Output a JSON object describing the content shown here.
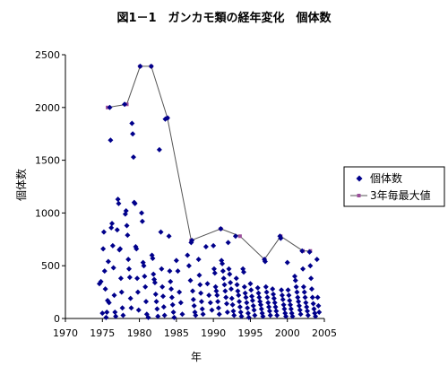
{
  "chart_data": {
    "type": "scatter",
    "title": "図1－1　ガンカモ類の経年変化　個体数",
    "xlabel": "年",
    "ylabel": "個体数",
    "xlim": [
      1970,
      2005
    ],
    "ylim": [
      0,
      2500
    ],
    "xticks": [
      1970,
      1975,
      1980,
      1985,
      1990,
      1995,
      2000,
      2005
    ],
    "yticks": [
      0,
      500,
      1000,
      1500,
      2000,
      2500
    ],
    "grid": false,
    "legend_position": "right",
    "colors": {
      "scatter": "#00008b",
      "line": "#555555",
      "max_marker": "#9b4f9b"
    },
    "series": [
      {
        "name": "個体数",
        "kind": "scatter",
        "points": [
          [
            1974.6,
            330
          ],
          [
            1974.8,
            350
          ],
          [
            1975.0,
            50
          ],
          [
            1975.1,
            660
          ],
          [
            1975.2,
            820
          ],
          [
            1975.3,
            450
          ],
          [
            1975.4,
            280
          ],
          [
            1975.5,
            10
          ],
          [
            1975.6,
            60
          ],
          [
            1975.7,
            170
          ],
          [
            1975.8,
            540
          ],
          [
            1975.9,
            150
          ],
          [
            1976.0,
            2000
          ],
          [
            1976.1,
            1690
          ],
          [
            1976.2,
            860
          ],
          [
            1976.3,
            900
          ],
          [
            1976.4,
            690
          ],
          [
            1976.5,
            480
          ],
          [
            1976.6,
            220
          ],
          [
            1976.7,
            60
          ],
          [
            1976.8,
            20
          ],
          [
            1977.0,
            840
          ],
          [
            1977.1,
            1130
          ],
          [
            1977.2,
            1090
          ],
          [
            1977.3,
            650
          ],
          [
            1977.4,
            660
          ],
          [
            1977.5,
            380
          ],
          [
            1977.6,
            250
          ],
          [
            1977.7,
            100
          ],
          [
            1977.8,
            30
          ],
          [
            1978.0,
            2030
          ],
          [
            1978.1,
            990
          ],
          [
            1978.2,
            1020
          ],
          [
            1978.3,
            880
          ],
          [
            1978.4,
            790
          ],
          [
            1978.5,
            560
          ],
          [
            1978.6,
            470
          ],
          [
            1978.7,
            390
          ],
          [
            1978.8,
            190
          ],
          [
            1978.9,
            100
          ],
          [
            1979.0,
            1850
          ],
          [
            1979.1,
            1750
          ],
          [
            1979.2,
            1530
          ],
          [
            1979.3,
            1100
          ],
          [
            1979.4,
            1090
          ],
          [
            1979.5,
            680
          ],
          [
            1979.6,
            660
          ],
          [
            1979.7,
            380
          ],
          [
            1979.8,
            250
          ],
          [
            1979.9,
            80
          ],
          [
            1980.1,
            2390
          ],
          [
            1980.3,
            1000
          ],
          [
            1980.4,
            920
          ],
          [
            1980.5,
            530
          ],
          [
            1980.6,
            500
          ],
          [
            1980.7,
            400
          ],
          [
            1980.8,
            300
          ],
          [
            1980.9,
            160
          ],
          [
            1981.0,
            40
          ],
          [
            1981.2,
            10
          ],
          [
            1981.6,
            2390
          ],
          [
            1981.7,
            600
          ],
          [
            1981.8,
            570
          ],
          [
            1981.9,
            420
          ],
          [
            1982.0,
            370
          ],
          [
            1982.1,
            340
          ],
          [
            1982.2,
            230
          ],
          [
            1982.3,
            160
          ],
          [
            1982.4,
            90
          ],
          [
            1982.5,
            20
          ],
          [
            1982.7,
            1600
          ],
          [
            1982.9,
            820
          ],
          [
            1983.0,
            470
          ],
          [
            1983.1,
            300
          ],
          [
            1983.2,
            210
          ],
          [
            1983.3,
            110
          ],
          [
            1983.4,
            30
          ],
          [
            1983.5,
            1890
          ],
          [
            1983.8,
            1900
          ],
          [
            1984.0,
            780
          ],
          [
            1984.1,
            450
          ],
          [
            1984.2,
            350
          ],
          [
            1984.3,
            280
          ],
          [
            1984.4,
            200
          ],
          [
            1984.5,
            130
          ],
          [
            1984.6,
            60
          ],
          [
            1984.7,
            10
          ],
          [
            1985.0,
            550
          ],
          [
            1985.2,
            450
          ],
          [
            1985.4,
            250
          ],
          [
            1985.6,
            150
          ],
          [
            1985.8,
            40
          ],
          [
            1986.5,
            600
          ],
          [
            1986.7,
            500
          ],
          [
            1986.9,
            360
          ],
          [
            1987.0,
            720
          ],
          [
            1987.1,
            740
          ],
          [
            1987.2,
            260
          ],
          [
            1987.3,
            180
          ],
          [
            1987.4,
            120
          ],
          [
            1987.5,
            60
          ],
          [
            1987.6,
            30
          ],
          [
            1988.0,
            560
          ],
          [
            1988.1,
            410
          ],
          [
            1988.2,
            320
          ],
          [
            1988.3,
            240
          ],
          [
            1988.4,
            160
          ],
          [
            1988.5,
            90
          ],
          [
            1988.6,
            40
          ],
          [
            1989.0,
            680
          ],
          [
            1989.2,
            330
          ],
          [
            1989.4,
            220
          ],
          [
            1989.6,
            150
          ],
          [
            1989.8,
            80
          ],
          [
            1990.0,
            690
          ],
          [
            1990.1,
            470
          ],
          [
            1990.2,
            430
          ],
          [
            1990.3,
            300
          ],
          [
            1990.4,
            260
          ],
          [
            1990.5,
            220
          ],
          [
            1990.6,
            160
          ],
          [
            1990.7,
            100
          ],
          [
            1990.8,
            40
          ],
          [
            1991.0,
            850
          ],
          [
            1991.1,
            550
          ],
          [
            1991.2,
            520
          ],
          [
            1991.3,
            450
          ],
          [
            1991.4,
            380
          ],
          [
            1991.5,
            320
          ],
          [
            1991.6,
            260
          ],
          [
            1991.7,
            200
          ],
          [
            1991.8,
            140
          ],
          [
            1991.9,
            60
          ],
          [
            1992.0,
            720
          ],
          [
            1992.1,
            470
          ],
          [
            1992.2,
            420
          ],
          [
            1992.3,
            340
          ],
          [
            1992.4,
            280
          ],
          [
            1992.5,
            190
          ],
          [
            1992.6,
            130
          ],
          [
            1992.7,
            70
          ],
          [
            1992.8,
            30
          ],
          [
            1993.0,
            780
          ],
          [
            1993.1,
            380
          ],
          [
            1993.2,
            320
          ],
          [
            1993.3,
            260
          ],
          [
            1993.4,
            220
          ],
          [
            1993.5,
            160
          ],
          [
            1993.6,
            110
          ],
          [
            1993.7,
            60
          ],
          [
            1993.8,
            20
          ],
          [
            1994.0,
            470
          ],
          [
            1994.1,
            440
          ],
          [
            1994.2,
            300
          ],
          [
            1994.3,
            240
          ],
          [
            1994.4,
            200
          ],
          [
            1994.5,
            150
          ],
          [
            1994.6,
            100
          ],
          [
            1994.7,
            50
          ],
          [
            1994.8,
            10
          ],
          [
            1995.0,
            330
          ],
          [
            1995.1,
            270
          ],
          [
            1995.2,
            210
          ],
          [
            1995.3,
            170
          ],
          [
            1995.4,
            120
          ],
          [
            1995.5,
            80
          ],
          [
            1995.6,
            30
          ],
          [
            1996.0,
            290
          ],
          [
            1996.1,
            240
          ],
          [
            1996.2,
            200
          ],
          [
            1996.3,
            160
          ],
          [
            1996.4,
            130
          ],
          [
            1996.5,
            90
          ],
          [
            1996.6,
            50
          ],
          [
            1996.7,
            20
          ],
          [
            1996.9,
            560
          ],
          [
            1997.0,
            540
          ],
          [
            1997.1,
            300
          ],
          [
            1997.2,
            250
          ],
          [
            1997.3,
            200
          ],
          [
            1997.4,
            150
          ],
          [
            1997.5,
            110
          ],
          [
            1997.6,
            70
          ],
          [
            1997.7,
            30
          ],
          [
            1998.0,
            280
          ],
          [
            1998.1,
            230
          ],
          [
            1998.2,
            190
          ],
          [
            1998.3,
            150
          ],
          [
            1998.4,
            110
          ],
          [
            1998.5,
            70
          ],
          [
            1998.6,
            30
          ],
          [
            1999.0,
            780
          ],
          [
            1999.1,
            760
          ],
          [
            1999.2,
            270
          ],
          [
            1999.3,
            220
          ],
          [
            1999.4,
            180
          ],
          [
            1999.5,
            130
          ],
          [
            1999.6,
            90
          ],
          [
            1999.7,
            50
          ],
          [
            1999.8,
            20
          ],
          [
            2000.0,
            530
          ],
          [
            2000.1,
            270
          ],
          [
            2000.2,
            220
          ],
          [
            2000.3,
            170
          ],
          [
            2000.4,
            130
          ],
          [
            2000.5,
            90
          ],
          [
            2000.6,
            50
          ],
          [
            2000.7,
            20
          ],
          [
            2001.0,
            400
          ],
          [
            2001.1,
            360
          ],
          [
            2001.2,
            300
          ],
          [
            2001.3,
            250
          ],
          [
            2001.4,
            200
          ],
          [
            2001.5,
            160
          ],
          [
            2001.6,
            120
          ],
          [
            2001.7,
            80
          ],
          [
            2001.8,
            40
          ],
          [
            2002.0,
            640
          ],
          [
            2002.1,
            470
          ],
          [
            2002.2,
            300
          ],
          [
            2002.3,
            250
          ],
          [
            2002.4,
            200
          ],
          [
            2002.5,
            150
          ],
          [
            2002.6,
            110
          ],
          [
            2002.7,
            70
          ],
          [
            2002.8,
            30
          ],
          [
            2003.0,
            630
          ],
          [
            2003.1,
            500
          ],
          [
            2003.2,
            380
          ],
          [
            2003.3,
            280
          ],
          [
            2003.4,
            200
          ],
          [
            2003.5,
            140
          ],
          [
            2003.6,
            90
          ],
          [
            2003.7,
            50
          ],
          [
            2003.8,
            20
          ],
          [
            2004.0,
            560
          ],
          [
            2004.1,
            200
          ],
          [
            2004.2,
            120
          ],
          [
            2004.3,
            60
          ]
        ]
      },
      {
        "name": "3年毎最大値",
        "kind": "line",
        "points": [
          [
            1975.7,
            2000
          ],
          [
            1978.3,
            2030
          ],
          [
            1980.1,
            2390
          ],
          [
            1981.6,
            2390
          ],
          [
            1983.8,
            1900
          ],
          [
            1987.0,
            740
          ],
          [
            1991.0,
            850
          ],
          [
            1993.6,
            780
          ],
          [
            1996.9,
            560
          ],
          [
            1999.1,
            780
          ],
          [
            2002.1,
            640
          ],
          [
            2003.1,
            640
          ]
        ]
      }
    ]
  }
}
